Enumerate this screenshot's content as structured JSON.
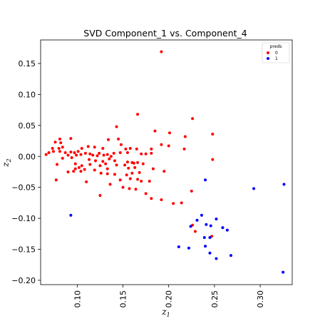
{
  "chart_data": {
    "type": "scatter",
    "title": "SVD Component_1 vs. Component_4",
    "xlabel": "z",
    "xlabel_sub": "1",
    "ylabel": "z",
    "ylabel_sub": "2",
    "xlim": [
      0.06,
      0.335
    ],
    "ylim": [
      -0.207,
      0.188
    ],
    "xticks": [
      0.1,
      0.15,
      0.2,
      0.25,
      0.3
    ],
    "xtick_labels": [
      "0.10",
      "0.15",
      "0.20",
      "0.25",
      "0.30"
    ],
    "yticks": [
      0.15,
      0.1,
      0.05,
      0.0,
      -0.05,
      -0.1,
      -0.15,
      -0.2
    ],
    "ytick_labels": [
      "0.15",
      "0.10",
      "0.05",
      "0.00",
      "−0.05",
      "−0.10",
      "−0.15",
      "−0.20"
    ],
    "grid": false,
    "legend": {
      "title": "preds",
      "placement": "top-right"
    },
    "series": [
      {
        "name": "0",
        "color": "#ff0000",
        "points": [
          [
            0.192,
            0.169
          ],
          [
            0.166,
            0.068
          ],
          [
            0.226,
            0.061
          ],
          [
            0.143,
            0.048
          ],
          [
            0.185,
            0.041
          ],
          [
            0.201,
            0.038
          ],
          [
            0.248,
            0.036
          ],
          [
            0.218,
            0.032
          ],
          [
            0.081,
            0.028
          ],
          [
            0.093,
            0.029
          ],
          [
            0.134,
            0.027
          ],
          [
            0.145,
            0.028
          ],
          [
            0.076,
            0.023
          ],
          [
            0.082,
            0.022
          ],
          [
            0.148,
            0.019
          ],
          [
            0.192,
            0.019
          ],
          [
            0.2,
            0.017
          ],
          [
            0.073,
            0.013
          ],
          [
            0.08,
            0.013
          ],
          [
            0.084,
            0.015
          ],
          [
            0.105,
            0.013
          ],
          [
            0.112,
            0.016
          ],
          [
            0.119,
            0.015
          ],
          [
            0.128,
            0.013
          ],
          [
            0.153,
            0.012
          ],
          [
            0.158,
            0.013
          ],
          [
            0.165,
            0.012
          ],
          [
            0.181,
            0.012
          ],
          [
            0.217,
            0.012
          ],
          [
            0.069,
            0.006
          ],
          [
            0.074,
            0.008
          ],
          [
            0.081,
            0.008
          ],
          [
            0.087,
            0.006
          ],
          [
            0.093,
            0.007
          ],
          [
            0.097,
            0.006
          ],
          [
            0.101,
            0.008
          ],
          [
            0.109,
            0.005
          ],
          [
            0.114,
            0.004
          ],
          [
            0.124,
            0.005
          ],
          [
            0.133,
            0.003
          ],
          [
            0.14,
            0.005
          ],
          [
            0.147,
            0.006
          ],
          [
            0.155,
            0.006
          ],
          [
            0.17,
            0.004
          ],
          [
            0.175,
            0.004
          ],
          [
            0.066,
            0.003
          ],
          [
            0.09,
            0.002
          ],
          [
            0.099,
            0.002
          ],
          [
            0.104,
            0.003
          ],
          [
            0.117,
            0.002
          ],
          [
            0.122,
            0.001
          ],
          [
            0.129,
            0.002
          ],
          [
            0.137,
            0.0
          ],
          [
            0.181,
            0.005
          ],
          [
            0.248,
            -0.005
          ],
          [
            0.084,
            -0.003
          ],
          [
            0.094,
            -0.002
          ],
          [
            0.113,
            -0.005
          ],
          [
            0.12,
            -0.007
          ],
          [
            0.128,
            -0.008
          ],
          [
            0.135,
            -0.004
          ],
          [
            0.141,
            -0.007
          ],
          [
            0.155,
            -0.009
          ],
          [
            0.162,
            -0.011
          ],
          [
            0.078,
            -0.013
          ],
          [
            0.098,
            -0.012
          ],
          [
            0.105,
            -0.015
          ],
          [
            0.114,
            -0.013
          ],
          [
            0.125,
            -0.015
          ],
          [
            0.131,
            -0.012
          ],
          [
            0.143,
            -0.014
          ],
          [
            0.152,
            -0.014
          ],
          [
            0.16,
            -0.01
          ],
          [
            0.166,
            -0.01
          ],
          [
            0.172,
            -0.012
          ],
          [
            0.098,
            -0.02
          ],
          [
            0.102,
            -0.018
          ],
          [
            0.108,
            -0.021
          ],
          [
            0.119,
            -0.022
          ],
          [
            0.133,
            -0.02
          ],
          [
            0.156,
            -0.019
          ],
          [
            0.163,
            -0.018
          ],
          [
            0.183,
            -0.02
          ],
          [
            0.09,
            -0.025
          ],
          [
            0.096,
            -0.024
          ],
          [
            0.104,
            -0.024
          ],
          [
            0.126,
            -0.027
          ],
          [
            0.133,
            -0.028
          ],
          [
            0.141,
            -0.029
          ],
          [
            0.168,
            -0.026
          ],
          [
            0.195,
            -0.024
          ],
          [
            0.154,
            -0.03
          ],
          [
            0.16,
            -0.027
          ],
          [
            0.077,
            -0.038
          ],
          [
            0.11,
            -0.041
          ],
          [
            0.147,
            -0.038
          ],
          [
            0.136,
            -0.045
          ],
          [
            0.158,
            -0.036
          ],
          [
            0.166,
            -0.037
          ],
          [
            0.17,
            -0.04
          ],
          [
            0.179,
            -0.04
          ],
          [
            0.15,
            -0.05
          ],
          [
            0.157,
            -0.052
          ],
          [
            0.164,
            -0.053
          ],
          [
            0.125,
            -0.063
          ],
          [
            0.175,
            -0.06
          ],
          [
            0.225,
            -0.056
          ],
          [
            0.181,
            -0.068
          ],
          [
            0.192,
            -0.07
          ],
          [
            0.205,
            -0.076
          ],
          [
            0.214,
            -0.075
          ],
          [
            0.226,
            -0.111
          ],
          [
            0.229,
            -0.121
          ],
          [
            0.247,
            -0.129
          ]
        ]
      },
      {
        "name": "1",
        "color": "#0000ff",
        "points": [
          [
            0.24,
            -0.038
          ],
          [
            0.293,
            -0.052
          ],
          [
            0.326,
            -0.045
          ],
          [
            0.093,
            -0.095
          ],
          [
            0.236,
            -0.095
          ],
          [
            0.231,
            -0.103
          ],
          [
            0.252,
            -0.101
          ],
          [
            0.241,
            -0.11
          ],
          [
            0.246,
            -0.112
          ],
          [
            0.224,
            -0.113
          ],
          [
            0.259,
            -0.115
          ],
          [
            0.264,
            -0.119
          ],
          [
            0.239,
            -0.131
          ],
          [
            0.245,
            -0.131
          ],
          [
            0.211,
            -0.146
          ],
          [
            0.222,
            -0.148
          ],
          [
            0.24,
            -0.145
          ],
          [
            0.245,
            -0.156
          ],
          [
            0.268,
            -0.16
          ],
          [
            0.252,
            -0.165
          ],
          [
            0.325,
            -0.187
          ]
        ]
      }
    ]
  }
}
